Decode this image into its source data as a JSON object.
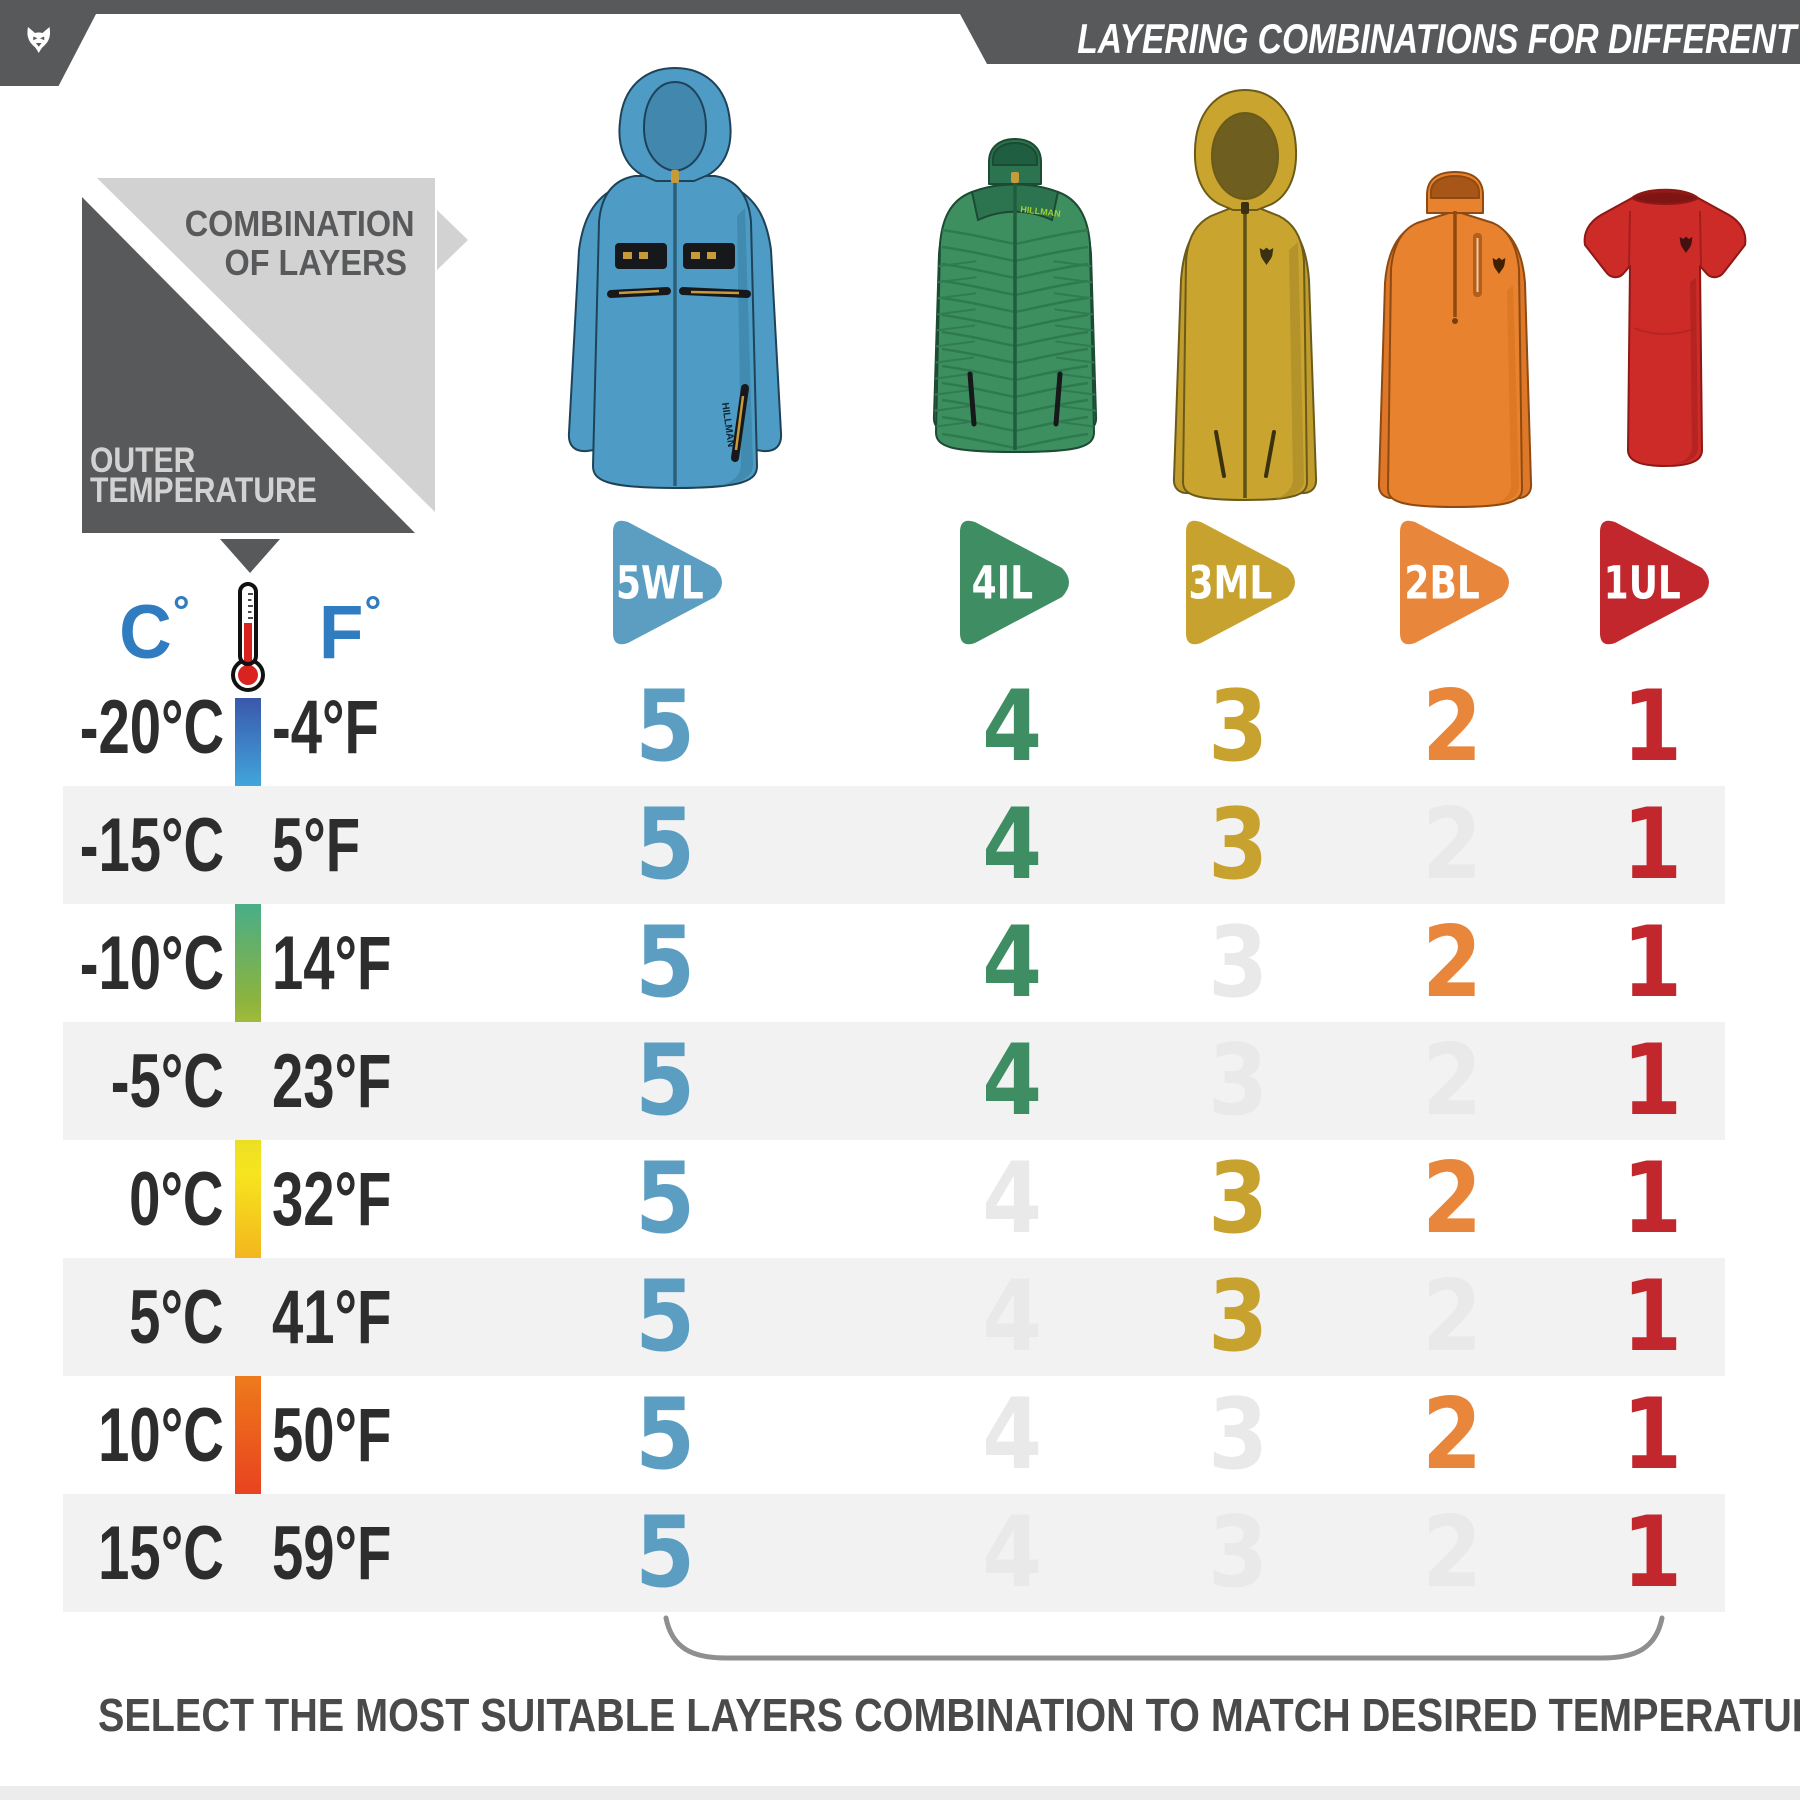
{
  "header": {
    "title": "LAYERING COMBINATIONS FOR DIFFERENT CLIMATES"
  },
  "brand": "HILLMAN",
  "legend": {
    "combination": [
      "COMBINATION",
      "OF LAYERS"
    ],
    "temperature": [
      "OUTER",
      "TEMPERATURE"
    ]
  },
  "scale_header": {
    "celsius_letter": "C",
    "fahrenheit_letter": "F",
    "degree": "°"
  },
  "layers": [
    {
      "code": "5WL",
      "number": "5",
      "color": "#5B9EC2",
      "garment": "hooded-shell-jacket"
    },
    {
      "code": "4IL",
      "number": "4",
      "color": "#3F8D63",
      "garment": "insulated-puffer-jacket"
    },
    {
      "code": "3ML",
      "number": "3",
      "color": "#C8A22F",
      "garment": "zip-hoodie-midlayer"
    },
    {
      "code": "2BL",
      "number": "2",
      "color": "#E8873B",
      "garment": "quarter-zip-baselayer"
    },
    {
      "code": "1UL",
      "number": "1",
      "color": "#C1272D",
      "garment": "short-sleeve-tee"
    }
  ],
  "table": {
    "rows": [
      {
        "celsius": "-20°C",
        "fahrenheit": "-4°F",
        "active": [
          true,
          true,
          true,
          true,
          true
        ]
      },
      {
        "celsius": "-15°C",
        "fahrenheit": "5°F",
        "active": [
          true,
          true,
          true,
          false,
          true
        ]
      },
      {
        "celsius": "-10°C",
        "fahrenheit": "14°F",
        "active": [
          true,
          true,
          false,
          true,
          true
        ]
      },
      {
        "celsius": "-5°C",
        "fahrenheit": "23°F",
        "active": [
          true,
          true,
          false,
          false,
          true
        ]
      },
      {
        "celsius": "0°C",
        "fahrenheit": "32°F",
        "active": [
          true,
          false,
          true,
          true,
          true
        ]
      },
      {
        "celsius": "5°C",
        "fahrenheit": "41°F",
        "active": [
          true,
          false,
          true,
          false,
          true
        ]
      },
      {
        "celsius": "10°C",
        "fahrenheit": "50°F",
        "active": [
          true,
          false,
          false,
          true,
          true
        ]
      },
      {
        "celsius": "15°C",
        "fahrenheit": "59°F",
        "active": [
          true,
          false,
          false,
          false,
          true
        ]
      }
    ],
    "faded_color": "#E9E9E9",
    "stripe_color": "#F2F2F2"
  },
  "footer": {
    "note": "SELECT THE MOST SUITABLE LAYERS COMBINATION TO MATCH DESIRED TEMPERATURE RANGE"
  },
  "colors": {
    "banner": "#58595B",
    "light_gray": "#D2D2D2",
    "scale_blue": "#2F7CC0",
    "temp_text": "#2D2D2D"
  }
}
